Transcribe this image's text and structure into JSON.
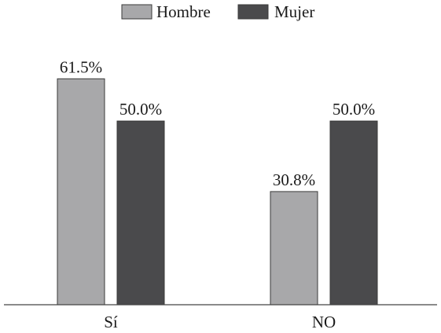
{
  "chart_data": {
    "type": "bar",
    "categories": [
      "Sí",
      "NO"
    ],
    "series": [
      {
        "name": "Hombre",
        "values": [
          61.5,
          30.8
        ],
        "labels": [
          "61.5%",
          "30.8%"
        ],
        "color": "#a8a8aa"
      },
      {
        "name": "Mujer",
        "values": [
          50.0,
          50.0
        ],
        "labels": [
          "50.0%",
          "50.0%"
        ],
        "color": "#4a4a4c"
      }
    ],
    "title": "",
    "xlabel": "",
    "ylabel": "",
    "ylim": [
      0,
      100
    ],
    "grid": false,
    "legend_position": "top-center",
    "y_axis_visible": false
  }
}
